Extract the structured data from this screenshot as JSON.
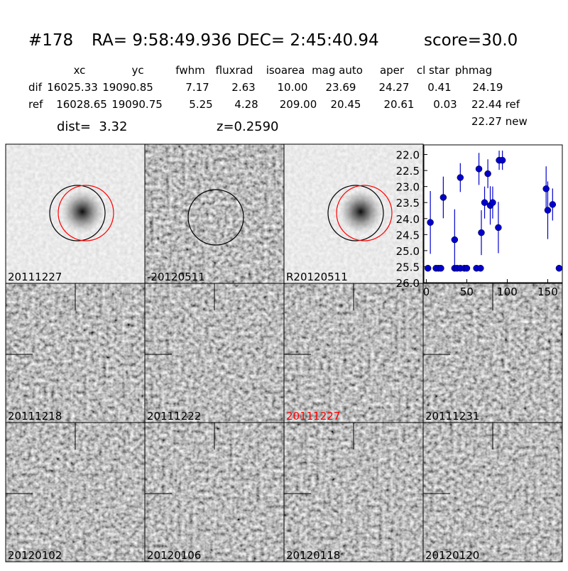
{
  "header": {
    "id": "#178",
    "coords": "RA= 9:58:49.936 DEC= 2:45:40.94",
    "score": "score=30.0"
  },
  "table": {
    "columns": [
      "xc",
      "yc",
      "fwhm",
      "fluxrad",
      "isoarea",
      "mag auto",
      "aper",
      "cl star",
      "phmag"
    ],
    "rows": [
      {
        "label": "dif",
        "cells": [
          "16025.33",
          "19090.85",
          "7.17",
          "2.63",
          "10.00",
          "23.69",
          "24.27",
          "0.41",
          "24.19"
        ]
      },
      {
        "label": "ref",
        "cells": [
          "16028.65",
          "19090.75",
          "5.25",
          "4.28",
          "209.00",
          "20.45",
          "20.61",
          "0.03",
          "22.44 ref"
        ]
      }
    ],
    "note": "22.27 new"
  },
  "info": {
    "dist": "dist=  3.32",
    "z": "z=0.2590"
  },
  "panels": [
    {
      "label": "20111227",
      "color": "#000000"
    },
    {
      "label": "-20120511",
      "color": "#000000"
    },
    {
      "label": "R20120511",
      "color": "#000000"
    },
    {
      "label": "20111218",
      "color": "#000000"
    },
    {
      "label": "20111222",
      "color": "#000000"
    },
    {
      "label": "20111227",
      "color": "#ff0000"
    },
    {
      "label": "20111231",
      "color": "#000000"
    },
    {
      "label": "20120102",
      "color": "#000000"
    },
    {
      "label": "20120106",
      "color": "#000000"
    },
    {
      "label": "20120118",
      "color": "#000000"
    },
    {
      "label": "20120120",
      "color": "#000000"
    }
  ],
  "chart_data": {
    "type": "scatter",
    "color": "#0000cc",
    "x": [
      2,
      5,
      12,
      15,
      18,
      21,
      35,
      35,
      38,
      42,
      42,
      47,
      50,
      62,
      65,
      67,
      68,
      72,
      76,
      79,
      82,
      89,
      90,
      94,
      148,
      150,
      156,
      164
    ],
    "values": [
      25.55,
      24.12,
      25.55,
      25.55,
      25.55,
      23.34,
      25.55,
      24.66,
      25.55,
      22.72,
      25.55,
      25.55,
      25.55,
      25.55,
      22.45,
      25.55,
      24.44,
      23.5,
      22.6,
      23.59,
      23.5,
      24.28,
      22.18,
      22.18,
      23.07,
      23.74,
      23.56,
      25.55
    ],
    "errors": [
      0,
      0.98,
      0,
      0,
      0,
      0.65,
      0,
      0.95,
      0,
      0.45,
      0,
      0,
      0,
      0,
      0.5,
      0,
      0.7,
      0.5,
      0.45,
      0.6,
      0.5,
      0.8,
      0.3,
      0.3,
      0.7,
      0.9,
      0.5,
      0
    ],
    "xlim": [
      -3,
      168
    ],
    "ylim": [
      26.0,
      21.7
    ],
    "xticks": [
      0,
      50,
      100,
      150
    ],
    "yticks": [
      {
        "value": 22,
        "label": "22.0"
      },
      {
        "value": 22.5,
        "label": "22.5"
      },
      {
        "value": 23,
        "label": "23.0"
      },
      {
        "value": 23.5,
        "label": "23.5"
      },
      {
        "value": 24,
        "label": "24.0"
      },
      {
        "value": 24.5,
        "label": "24.5"
      },
      {
        "value": 25,
        "label": "25.0"
      },
      {
        "value": 25.5,
        "label": "25.5"
      },
      {
        "value": 26,
        "label": "26.0"
      }
    ]
  }
}
